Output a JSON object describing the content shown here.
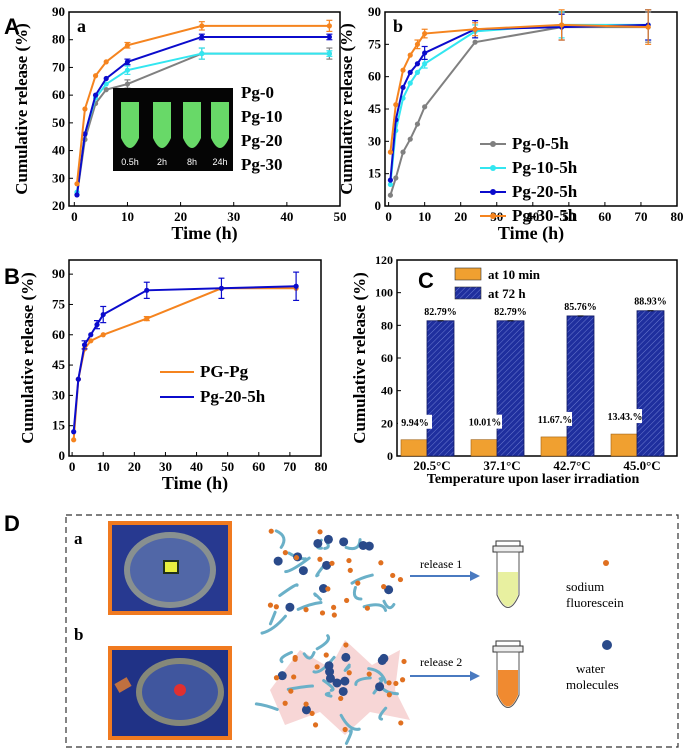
{
  "colors": {
    "orange": "#f5841f",
    "blue": "#0b0bcc",
    "cyan": "#33e6f0",
    "gray": "#808080",
    "navy": "#1f2f9e",
    "bar_orange": "#f0a030"
  },
  "panel_letters": {
    "A": "A",
    "B": "B",
    "C": "C",
    "D": "D"
  },
  "chart_data": [
    {
      "id": "A-a",
      "type": "line",
      "sub_label": "a",
      "xlabel": "Time (h)",
      "ylabel": "Cumulative release (%)",
      "xlim": [
        -1,
        50
      ],
      "ylim": [
        20,
        90
      ],
      "xticks": [
        0,
        10,
        20,
        30,
        40,
        50
      ],
      "yticks": [
        20,
        30,
        40,
        50,
        60,
        70,
        80,
        90
      ],
      "series": [
        {
          "name": "Pg-0",
          "color": "#808080",
          "x": [
            0.5,
            2,
            4,
            6,
            10,
            24,
            48
          ],
          "y": [
            24,
            44,
            57,
            62,
            64,
            75,
            75
          ],
          "err": [
            0,
            0,
            0,
            0,
            1.5,
            2,
            2
          ]
        },
        {
          "name": "Pg-10",
          "color": "#33e6f0",
          "x": [
            0.5,
            2,
            4,
            6,
            10,
            24,
            48
          ],
          "y": [
            25,
            46,
            59,
            64,
            69,
            75,
            75
          ],
          "err": [
            0,
            0,
            0,
            0,
            1.5,
            2,
            1
          ]
        },
        {
          "name": "Pg-20",
          "color": "#0b0bcc",
          "x": [
            0.5,
            2,
            4,
            6,
            10,
            24,
            48
          ],
          "y": [
            24,
            46,
            60,
            66,
            72,
            81,
            81
          ],
          "err": [
            0,
            0,
            0,
            0,
            1,
            1,
            1
          ]
        },
        {
          "name": "Pg-30",
          "color": "#f5841f",
          "x": [
            0.5,
            2,
            4,
            6,
            10,
            24,
            48
          ],
          "y": [
            28,
            55,
            67,
            72,
            78,
            85,
            85
          ],
          "err": [
            0,
            0,
            0,
            0,
            1,
            1.5,
            2
          ]
        }
      ],
      "inset_labels": [
        "0.5h",
        "2h",
        "8h",
        "24h"
      ]
    },
    {
      "id": "A-b",
      "type": "line",
      "sub_label": "b",
      "xlabel": "Time (h)",
      "ylabel": "Cumulative release (%)",
      "xlim": [
        -1,
        80
      ],
      "ylim": [
        0,
        90
      ],
      "xticks": [
        0,
        10,
        20,
        30,
        40,
        50,
        60,
        70,
        80
      ],
      "yticks": [
        0,
        15,
        30,
        45,
        60,
        75,
        90
      ],
      "series": [
        {
          "name": "Pg-0-5h",
          "color": "#808080",
          "x": [
            0.5,
            2,
            4,
            6,
            8,
            10,
            24,
            48,
            72
          ],
          "y": [
            5,
            13,
            25,
            31,
            38,
            46,
            76,
            83,
            83
          ],
          "err": [
            0,
            0,
            0,
            0,
            0,
            0,
            0,
            6,
            7
          ]
        },
        {
          "name": "Pg-10-5h",
          "color": "#33e6f0",
          "x": [
            0.5,
            2,
            4,
            6,
            8,
            10,
            24,
            48,
            72
          ],
          "y": [
            10,
            35,
            50,
            57,
            62,
            66,
            81,
            84,
            84
          ],
          "err": [
            0,
            0,
            0,
            0,
            0,
            2,
            3,
            6,
            7
          ]
        },
        {
          "name": "Pg-20-5h",
          "color": "#0b0bcc",
          "x": [
            0.5,
            2,
            4,
            6,
            8,
            10,
            24,
            48,
            72
          ],
          "y": [
            12,
            40,
            55,
            62,
            66,
            71,
            82,
            83,
            84
          ],
          "err": [
            0,
            0,
            0,
            0,
            0,
            3,
            4,
            6,
            7
          ]
        },
        {
          "name": "Pg-30-5h",
          "color": "#f5841f",
          "x": [
            0.5,
            2,
            4,
            6,
            8,
            10,
            24,
            48,
            72
          ],
          "y": [
            25,
            47,
            63,
            70,
            75,
            80,
            82,
            84,
            83
          ],
          "err": [
            0,
            0,
            0,
            0,
            2,
            2,
            3,
            7,
            8
          ]
        }
      ]
    },
    {
      "id": "B",
      "type": "line",
      "xlabel": "Time (h)",
      "ylabel": "Cumulative release (%)",
      "xlim": [
        -1,
        80
      ],
      "ylim": [
        0,
        97
      ],
      "xticks": [
        0,
        10,
        20,
        30,
        40,
        50,
        60,
        70,
        80
      ],
      "yticks": [
        0,
        15,
        30,
        45,
        60,
        75,
        90
      ],
      "series": [
        {
          "name": "PG-Pg",
          "color": "#f5841f",
          "x": [
            0.5,
            2,
            4,
            6,
            10,
            24,
            48,
            72
          ],
          "y": [
            8,
            38,
            53,
            57,
            60,
            68,
            83,
            83
          ],
          "err": [
            0,
            0,
            0,
            0,
            0,
            1,
            0,
            0
          ]
        },
        {
          "name": "Pg-20-5h",
          "color": "#0b0bcc",
          "x": [
            0.5,
            2,
            4,
            6,
            8,
            10,
            24,
            48,
            72
          ],
          "y": [
            12,
            38,
            55,
            60,
            65,
            70,
            82,
            83,
            84
          ],
          "err": [
            0,
            0,
            2,
            0,
            2,
            4,
            4,
            5,
            7
          ]
        }
      ]
    },
    {
      "id": "C",
      "type": "bar",
      "xlabel": "Temperature upon laser irradiation",
      "ylabel": "Cumulative release (%)",
      "ylim": [
        0,
        120
      ],
      "yticks": [
        0,
        20,
        40,
        60,
        80,
        100,
        120
      ],
      "categories": [
        "20.5°C",
        "37.1°C",
        "42.7°C",
        "45.0°C"
      ],
      "series": [
        {
          "name": "at 10 min",
          "color": "#f0a030",
          "values": [
            9.94,
            10.01,
            11.67,
            13.43
          ],
          "labels": [
            "9.94%",
            "10.01%",
            "11.67.%",
            "13.43.%"
          ]
        },
        {
          "name": "at 72 h",
          "color": "#1f2f9e",
          "values": [
            82.79,
            82.79,
            85.76,
            88.93
          ],
          "labels": [
            "82.79%",
            "82.79%",
            "85.76%",
            "88.93%"
          ]
        }
      ]
    }
  ],
  "diagram": {
    "row_a": "a",
    "row_b": "b",
    "release_1": "release 1",
    "release_2": "release 2",
    "legend_fluorescein": "sodium fluorescein",
    "legend_fluorescein_l1": "sodium",
    "legend_fluorescein_l2": "fluorescein",
    "legend_water_l1": "water",
    "legend_water_l2": "molecules"
  }
}
